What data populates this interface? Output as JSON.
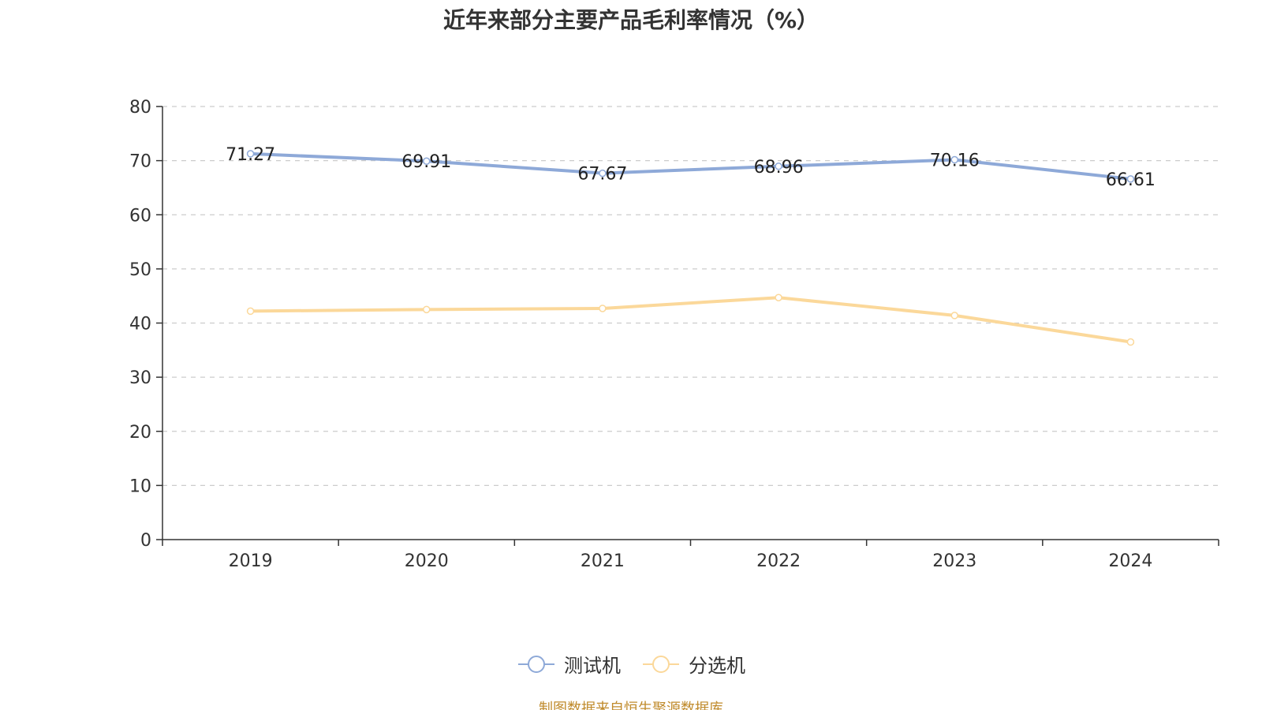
{
  "chart_data": {
    "type": "line",
    "title": "近年来部分主要产品毛利率情况（%）",
    "categories": [
      "2019",
      "2020",
      "2021",
      "2022",
      "2023",
      "2024"
    ],
    "ylim": [
      0,
      80
    ],
    "yticks": [
      0,
      10,
      20,
      30,
      40,
      50,
      60,
      70,
      80
    ],
    "grid": true,
    "legend_position": "bottom",
    "series": [
      {
        "name": "测试机",
        "color": "#8ea9d8",
        "values": [
          71.27,
          69.91,
          67.67,
          68.96,
          70.16,
          66.61
        ],
        "labels": [
          "71.27",
          "69.91",
          "67.67",
          "68.96",
          "70.16",
          "66.61"
        ],
        "show_labels": true
      },
      {
        "name": "分选机",
        "color": "#fbd89a",
        "values": [
          42.2,
          42.5,
          42.7,
          44.7,
          41.4,
          36.5
        ],
        "show_labels": false
      }
    ]
  },
  "source_text": "制图数据来自恒生聚源数据库"
}
